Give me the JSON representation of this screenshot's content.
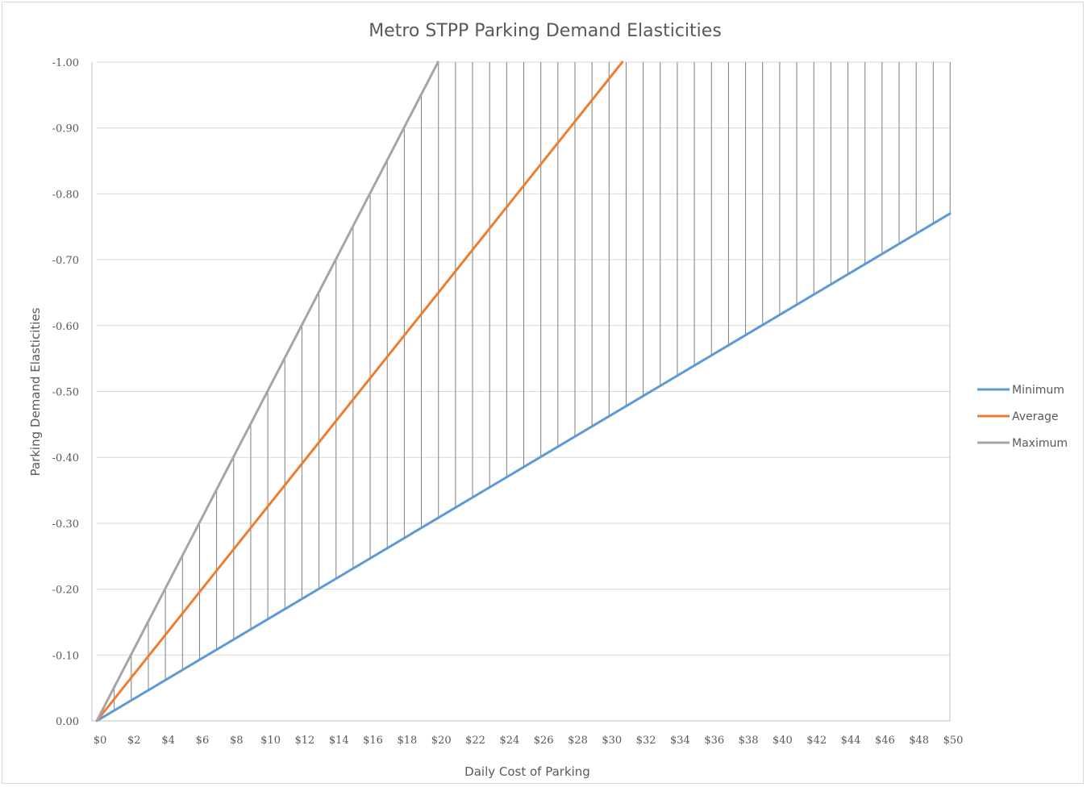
{
  "chart_data": {
    "type": "line",
    "title": "Metro STPP Parking Demand Elasticities",
    "xlabel": "Daily Cost of Parking",
    "ylabel": "Parking Demand Elasticities",
    "xlim": [
      0,
      50
    ],
    "ylim": [
      0,
      -1.0
    ],
    "y_ticks": [
      "0.00",
      "-0.10",
      "-0.20",
      "-0.30",
      "-0.40",
      "-0.50",
      "-0.60",
      "-0.70",
      "-0.80",
      "-0.90",
      "-1.00"
    ],
    "x_ticks": [
      "$0",
      "$2",
      "$4",
      "$6",
      "$8",
      "$10",
      "$12",
      "$14",
      "$16",
      "$18",
      "$20",
      "$22",
      "$24",
      "$26",
      "$28",
      "$30",
      "$32",
      "$34",
      "$36",
      "$38",
      "$40",
      "$42",
      "$44",
      "$46",
      "$48",
      "$50"
    ],
    "grid": true,
    "legend_position": "right",
    "drop_lines": "vertical lines from Minimum to Maximum at each $1",
    "series": [
      {
        "name": "Minimum",
        "color": "#5B9BD5",
        "x": [
          0,
          50
        ],
        "y": [
          0,
          -0.77
        ]
      },
      {
        "name": "Average",
        "color": "#ED7D31",
        "x": [
          0,
          30.8
        ],
        "y": [
          0,
          -1.0
        ]
      },
      {
        "name": "Maximum",
        "color": "#A5A5A5",
        "x": [
          0,
          20
        ],
        "y": [
          0,
          -1.0
        ]
      }
    ]
  }
}
